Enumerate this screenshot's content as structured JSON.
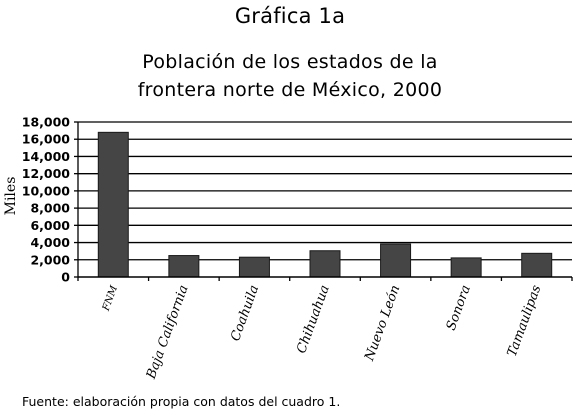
{
  "figure_label": "Gráfica 1a",
  "chart_data": {
    "type": "bar",
    "title_line1": "Población de los estados de la",
    "title_line2": "frontera norte de México, 2000",
    "ylabel": "Miles",
    "xlabel": "",
    "categories": [
      "FNM",
      "Baja California",
      "Coahuila",
      "Chihuahua",
      "Nuevo León",
      "Sonora",
      "Tamaulipas"
    ],
    "values": [
      16800,
      2490,
      2300,
      3050,
      3830,
      2220,
      2750
    ],
    "ylim": [
      0,
      18000
    ],
    "yticks": [
      0,
      2000,
      4000,
      6000,
      8000,
      10000,
      12000,
      14000,
      16000,
      18000
    ],
    "ytick_labels": [
      "0",
      "2,000",
      "4,000",
      "6,000",
      "8,000",
      "10,000",
      "12,000",
      "14,000",
      "16,000",
      "18,000"
    ],
    "grid": true,
    "legend": "none",
    "bar_color": "#454545"
  },
  "source_note": "Fuente: elaboración propia con datos del cuadro 1."
}
